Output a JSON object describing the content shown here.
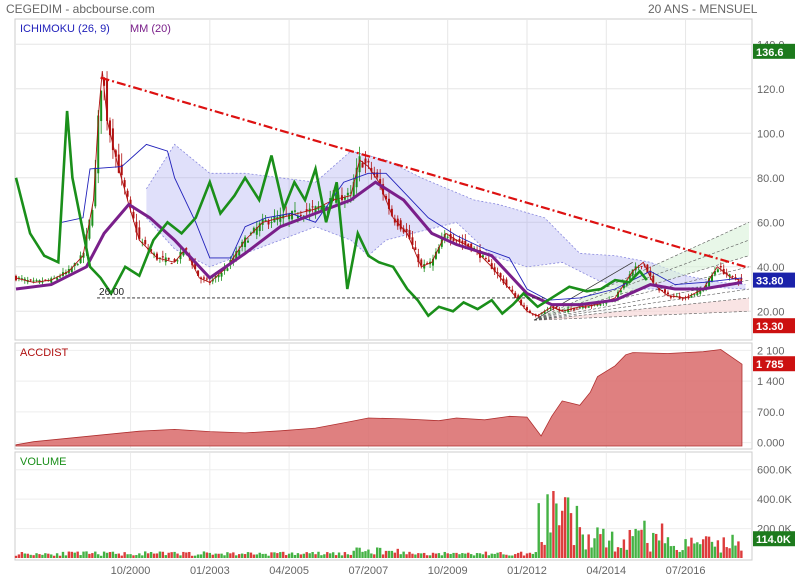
{
  "header": {
    "left": "CEGEDIM - abcbourse.com",
    "right": "20 ANS - MENSUEL"
  },
  "colors": {
    "price_up": "#1a8f1a",
    "price_down": "#b01010",
    "ichimoku_base": "#2222bb",
    "cloud": "#9999ee",
    "ma": "#7a1f8a",
    "lagging": "#1a8f1a",
    "trend": "#dd1111",
    "accdist": "#d96a6a",
    "volume_up": "#44b244",
    "volume_down": "#dd3c3c",
    "badge_green": "#1d7a1d",
    "badge_blue": "#1b22aa",
    "badge_red": "#cc1111"
  },
  "chart_data": [
    {
      "type": "line",
      "panel": "price",
      "indicators": [
        "ICHIMOKU (26, 9)",
        "MM (20)"
      ],
      "ylim": [
        8,
        150
      ],
      "yticks": [
        "140.0",
        "120.0",
        "100.0",
        "80.00",
        "60.00",
        "40.00",
        "20.00"
      ],
      "ytick_values": [
        140,
        120,
        100,
        80,
        60,
        40,
        20
      ],
      "x_start": 1997.5,
      "x_end": 2018.3,
      "xticks": [
        "10/2000",
        "01/2003",
        "04/2005",
        "07/2007",
        "10/2009",
        "01/2012",
        "04/2014",
        "07/2016"
      ],
      "xtick_values": [
        2000.75,
        2003.0,
        2005.25,
        2007.5,
        2009.75,
        2012.0,
        2014.25,
        2016.5
      ],
      "close_points": [
        [
          1997.5,
          35
        ],
        [
          1998.0,
          33
        ],
        [
          1998.5,
          34
        ],
        [
          1999.0,
          38
        ],
        [
          1999.4,
          45
        ],
        [
          1999.7,
          70
        ],
        [
          1999.85,
          110
        ],
        [
          1999.95,
          128
        ],
        [
          2000.1,
          105
        ],
        [
          2000.4,
          85
        ],
        [
          2000.7,
          68
        ],
        [
          2001.0,
          52
        ],
        [
          2001.5,
          44
        ],
        [
          2002.0,
          42
        ],
        [
          2002.3,
          48
        ],
        [
          2002.7,
          35
        ],
        [
          2003.0,
          33
        ],
        [
          2003.5,
          40
        ],
        [
          2004.0,
          52
        ],
        [
          2004.5,
          60
        ],
        [
          2005.0,
          62
        ],
        [
          2005.5,
          64
        ],
        [
          2006.0,
          66
        ],
        [
          2006.5,
          70
        ],
        [
          2007.0,
          72
        ],
        [
          2007.25,
          88
        ],
        [
          2007.5,
          85
        ],
        [
          2007.8,
          78
        ],
        [
          2008.2,
          62
        ],
        [
          2008.6,
          55
        ],
        [
          2009.0,
          40
        ],
        [
          2009.3,
          42
        ],
        [
          2009.7,
          55
        ],
        [
          2010.0,
          52
        ],
        [
          2010.5,
          48
        ],
        [
          2011.0,
          40
        ],
        [
          2011.5,
          30
        ],
        [
          2012.0,
          20
        ],
        [
          2012.3,
          18
        ],
        [
          2012.7,
          22
        ],
        [
          2013.0,
          20
        ],
        [
          2013.5,
          22
        ],
        [
          2014.0,
          23
        ],
        [
          2014.5,
          26
        ],
        [
          2015.0,
          38
        ],
        [
          2015.3,
          42
        ],
        [
          2015.6,
          32
        ],
        [
          2016.0,
          27
        ],
        [
          2016.5,
          26
        ],
        [
          2017.0,
          30
        ],
        [
          2017.4,
          40
        ],
        [
          2017.8,
          35
        ],
        [
          2018.1,
          33.8
        ]
      ],
      "ma_points": [
        [
          1997.5,
          30
        ],
        [
          1998.5,
          32
        ],
        [
          1999.5,
          40
        ],
        [
          2000.0,
          55
        ],
        [
          2000.7,
          68
        ],
        [
          2001.3,
          62
        ],
        [
          2002.0,
          52
        ],
        [
          2003.0,
          35
        ],
        [
          2004.0,
          46
        ],
        [
          2005.0,
          58
        ],
        [
          2006.0,
          64
        ],
        [
          2007.0,
          70
        ],
        [
          2007.7,
          78
        ],
        [
          2008.5,
          70
        ],
        [
          2009.3,
          55
        ],
        [
          2010.0,
          50
        ],
        [
          2011.0,
          45
        ],
        [
          2012.0,
          28
        ],
        [
          2012.7,
          23
        ],
        [
          2013.5,
          23
        ],
        [
          2014.5,
          25
        ],
        [
          2015.5,
          32
        ],
        [
          2016.2,
          30
        ],
        [
          2017.0,
          30
        ],
        [
          2018.1,
          33
        ]
      ],
      "lagging_points": [
        [
          1997.5,
          80
        ],
        [
          1997.9,
          55
        ],
        [
          1998.3,
          45
        ],
        [
          1998.7,
          42
        ],
        [
          1998.95,
          110
        ],
        [
          1999.1,
          80
        ],
        [
          1999.35,
          60
        ],
        [
          1999.6,
          40
        ],
        [
          1999.9,
          35
        ],
        [
          2000.2,
          28
        ],
        [
          2000.6,
          40
        ],
        [
          2001.0,
          36
        ],
        [
          2001.4,
          52
        ],
        [
          2001.8,
          60
        ],
        [
          2002.2,
          55
        ],
        [
          2002.6,
          62
        ],
        [
          2003.0,
          78
        ],
        [
          2003.3,
          64
        ],
        [
          2003.7,
          72
        ],
        [
          2004.0,
          80
        ],
        [
          2004.4,
          70
        ],
        [
          2004.75,
          90
        ],
        [
          2005.1,
          66
        ],
        [
          2005.4,
          78
        ],
        [
          2005.7,
          70
        ],
        [
          2006.0,
          84
        ],
        [
          2006.3,
          60
        ],
        [
          2006.6,
          78
        ],
        [
          2006.9,
          30
        ],
        [
          2007.2,
          55
        ],
        [
          2007.5,
          45
        ],
        [
          2007.8,
          42
        ],
        [
          2008.2,
          40
        ],
        [
          2008.6,
          30
        ],
        [
          2008.9,
          25
        ],
        [
          2009.2,
          18
        ],
        [
          2009.5,
          22
        ],
        [
          2009.9,
          20
        ],
        [
          2010.2,
          24
        ],
        [
          2010.6,
          21
        ],
        [
          2011.0,
          25
        ],
        [
          2011.3,
          19
        ],
        [
          2011.6,
          23
        ],
        [
          2011.9,
          28
        ],
        [
          2012.3,
          22
        ],
        [
          2012.8,
          27
        ],
        [
          2013.2,
          31
        ],
        [
          2013.7,
          29
        ],
        [
          2014.1,
          30
        ],
        [
          2014.5,
          34
        ],
        [
          2014.9,
          33
        ],
        [
          2015.2,
          38
        ],
        [
          2015.4,
          34
        ]
      ],
      "kijun_points": [
        [
          1998.8,
          60
        ],
        [
          1999.4,
          62
        ],
        [
          1999.6,
          84
        ],
        [
          2000.5,
          85
        ],
        [
          2001.2,
          95
        ],
        [
          2001.8,
          92
        ],
        [
          2002.0,
          80
        ],
        [
          2002.6,
          60
        ],
        [
          2003.0,
          44
        ],
        [
          2003.6,
          44
        ],
        [
          2004.0,
          58
        ],
        [
          2004.6,
          62
        ],
        [
          2005.3,
          64
        ],
        [
          2006.0,
          60
        ],
        [
          2006.8,
          78
        ],
        [
          2007.5,
          82
        ],
        [
          2008.0,
          82
        ],
        [
          2008.6,
          72
        ],
        [
          2009.2,
          62
        ],
        [
          2010.0,
          54
        ],
        [
          2010.8,
          48
        ],
        [
          2011.5,
          44
        ],
        [
          2012.0,
          30
        ],
        [
          2012.6,
          25
        ],
        [
          2013.5,
          26
        ],
        [
          2014.5,
          30
        ],
        [
          2015.5,
          38
        ],
        [
          2016.2,
          32
        ],
        [
          2017.0,
          33
        ],
        [
          2018.1,
          35
        ]
      ],
      "cloud_upper": [
        [
          2001.2,
          75
        ],
        [
          2002.0,
          95
        ],
        [
          2003.0,
          82
        ],
        [
          2004.0,
          82
        ],
        [
          2005.0,
          80
        ],
        [
          2006.0,
          78
        ],
        [
          2007.0,
          92
        ],
        [
          2008.0,
          88
        ],
        [
          2009.0,
          80
        ],
        [
          2009.6,
          76
        ],
        [
          2010.5,
          70
        ],
        [
          2011.2,
          68
        ],
        [
          2012.5,
          62
        ],
        [
          2013.5,
          46
        ],
        [
          2014.5,
          45
        ],
        [
          2015.5,
          42
        ],
        [
          2016.5,
          36
        ],
        [
          2017.5,
          33
        ],
        [
          2018.2,
          32
        ]
      ],
      "cloud_lower": [
        [
          2001.2,
          62
        ],
        [
          2002.0,
          48
        ],
        [
          2003.0,
          40
        ],
        [
          2004.0,
          46
        ],
        [
          2005.0,
          52
        ],
        [
          2006.0,
          58
        ],
        [
          2007.0,
          52
        ],
        [
          2007.5,
          45
        ],
        [
          2008.0,
          52
        ],
        [
          2009.0,
          56
        ],
        [
          2010.0,
          60
        ],
        [
          2011.0,
          45
        ],
        [
          2012.0,
          40
        ],
        [
          2013.0,
          42
        ],
        [
          2014.0,
          34
        ],
        [
          2015.0,
          30
        ],
        [
          2016.0,
          30
        ],
        [
          2017.0,
          31
        ],
        [
          2018.2,
          30
        ]
      ],
      "trendline": {
        "from": [
          1999.9,
          125
        ],
        "to": [
          2018.2,
          40
        ]
      },
      "support_line": {
        "label": "26.00",
        "value": 26,
        "from": 1999.8,
        "to": 2012.5
      },
      "fan_origin": [
        2012.2,
        16
      ],
      "fan_targets": [
        60,
        52,
        45,
        40,
        34,
        30,
        26,
        20
      ],
      "badges": [
        {
          "label": "136.6",
          "value": 136.6,
          "color": "badge_green"
        },
        {
          "label": "33.80",
          "value": 33.8,
          "color": "badge_blue"
        },
        {
          "label": "13.30",
          "value": 13.3,
          "color": "badge_red"
        }
      ]
    },
    {
      "type": "area",
      "panel": "accdist",
      "title": "ACCDIST",
      "ylim": [
        -100,
        2200
      ],
      "yticks": [
        "2 100",
        "1 400",
        "700.0",
        "0.000"
      ],
      "ytick_values": [
        2100,
        1400,
        700,
        0
      ],
      "points": [
        [
          1997.5,
          -50
        ],
        [
          1998.0,
          20
        ],
        [
          1999.0,
          100
        ],
        [
          2000.0,
          180
        ],
        [
          2001.0,
          260
        ],
        [
          2002.0,
          300
        ],
        [
          2003.0,
          250
        ],
        [
          2004.0,
          220
        ],
        [
          2005.0,
          270
        ],
        [
          2006.0,
          330
        ],
        [
          2007.0,
          480
        ],
        [
          2007.5,
          560
        ],
        [
          2008.5,
          540
        ],
        [
          2009.5,
          500
        ],
        [
          2010.0,
          560
        ],
        [
          2010.8,
          520
        ],
        [
          2011.5,
          600
        ],
        [
          2012.0,
          580
        ],
        [
          2012.4,
          150
        ],
        [
          2012.7,
          600
        ],
        [
          2013.0,
          950
        ],
        [
          2013.5,
          850
        ],
        [
          2013.8,
          1150
        ],
        [
          2014.0,
          1500
        ],
        [
          2014.5,
          1750
        ],
        [
          2014.8,
          2000
        ],
        [
          2015.0,
          2050
        ],
        [
          2016.0,
          2030
        ],
        [
          2017.0,
          2070
        ],
        [
          2017.5,
          2120
        ],
        [
          2018.1,
          1785
        ]
      ],
      "badge": {
        "label": "1 785",
        "value": 1785
      }
    },
    {
      "type": "bar",
      "panel": "volume",
      "title": "VOLUME",
      "ylim": [
        0,
        700000
      ],
      "yticks": [
        "600.0K",
        "400.0K",
        "200.0K"
      ],
      "ytick_values": [
        600000,
        400000,
        200000
      ],
      "badge": {
        "label": "114.0K",
        "value": 114000
      }
    }
  ]
}
